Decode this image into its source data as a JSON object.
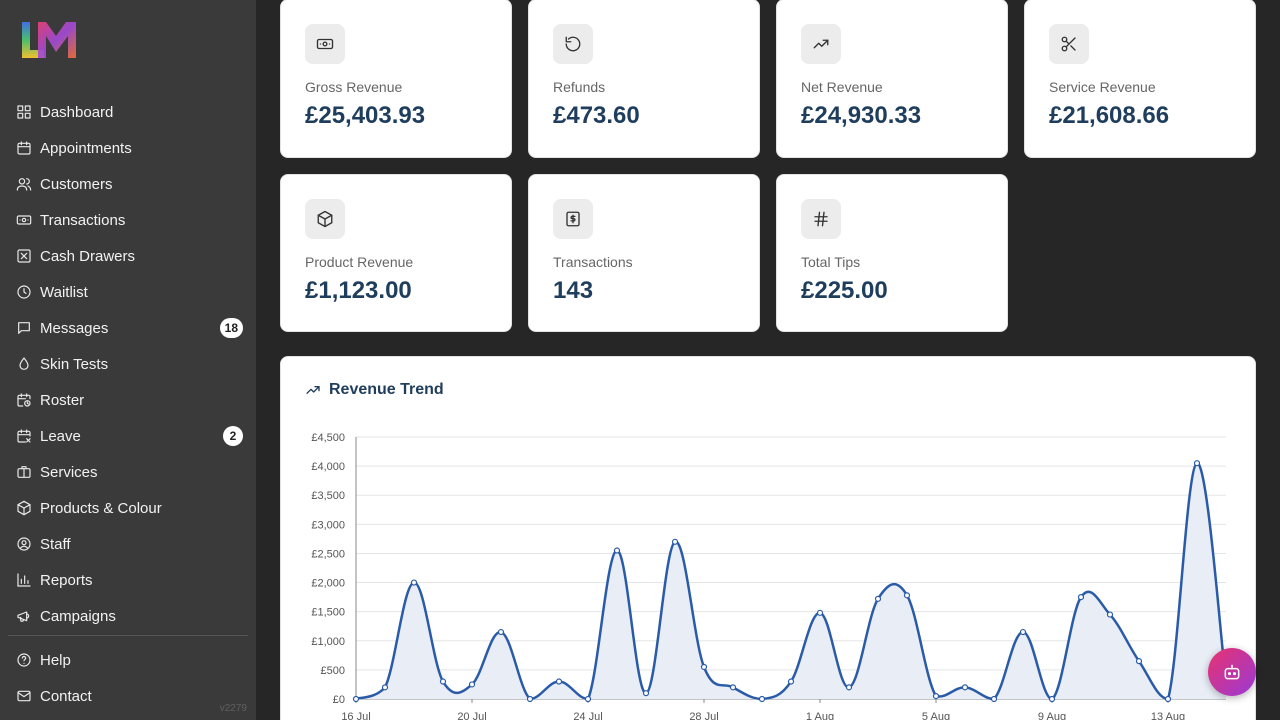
{
  "sidebar": {
    "logo_text": "LM",
    "items": [
      {
        "label": "Dashboard",
        "icon": "grid-icon"
      },
      {
        "label": "Appointments",
        "icon": "calendar-icon"
      },
      {
        "label": "Customers",
        "icon": "users-icon"
      },
      {
        "label": "Transactions",
        "icon": "banknote-icon"
      },
      {
        "label": "Cash Drawers",
        "icon": "drawer-x-icon"
      },
      {
        "label": "Waitlist",
        "icon": "clock-icon"
      },
      {
        "label": "Messages",
        "icon": "message-icon",
        "badge": "18"
      },
      {
        "label": "Skin Tests",
        "icon": "droplet-icon"
      },
      {
        "label": "Roster",
        "icon": "calendar-clock-icon"
      },
      {
        "label": "Leave",
        "icon": "calendar-off-icon",
        "badge": "2"
      },
      {
        "label": "Services",
        "icon": "briefcase-icon"
      },
      {
        "label": "Products & Colour",
        "icon": "box-icon"
      },
      {
        "label": "Staff",
        "icon": "user-circle-icon"
      },
      {
        "label": "Reports",
        "icon": "bar-chart-icon"
      },
      {
        "label": "Campaigns",
        "icon": "megaphone-icon"
      }
    ],
    "bottom_items": [
      {
        "label": "Help",
        "icon": "help-circle-icon"
      },
      {
        "label": "Contact",
        "icon": "mail-icon"
      }
    ],
    "version": "v2279"
  },
  "stats": [
    {
      "label": "Gross Revenue",
      "value": "£25,403.93",
      "icon": "banknote-icon"
    },
    {
      "label": "Refunds",
      "value": "£473.60",
      "icon": "rotate-ccw-icon"
    },
    {
      "label": "Net Revenue",
      "value": "£24,930.33",
      "icon": "trending-up-icon"
    },
    {
      "label": "Service Revenue",
      "value": "£21,608.66",
      "icon": "scissors-icon"
    },
    {
      "label": "Product Revenue",
      "value": "£1,123.00",
      "icon": "box-icon"
    },
    {
      "label": "Transactions",
      "value": "143",
      "icon": "receipt-dollar-icon"
    },
    {
      "label": "Total Tips",
      "value": "£225.00",
      "icon": "hash-icon"
    }
  ],
  "chart": {
    "title": "Revenue Trend",
    "icon": "trending-up-icon"
  },
  "chart_data": {
    "type": "area",
    "title": "Revenue Trend",
    "xlabel": "",
    "ylabel": "",
    "ylim": [
      0,
      4500
    ],
    "y_ticks": [
      "£0",
      "£500",
      "£1,000",
      "£1,500",
      "£2,000",
      "£2,500",
      "£3,000",
      "£3,500",
      "£4,000",
      "£4,500"
    ],
    "y_tick_values": [
      0,
      500,
      1000,
      1500,
      2000,
      2500,
      3000,
      3500,
      4000,
      4500
    ],
    "x_tick_labels": [
      "16 Jul",
      "20 Jul",
      "24 Jul",
      "28 Jul",
      "1 Aug",
      "5 Aug",
      "9 Aug",
      "13 Aug"
    ],
    "grid": true,
    "line_color": "#2a5ba8",
    "fill_color": "#e8edf6",
    "x": [
      "16 Jul",
      "17 Jul",
      "18 Jul",
      "19 Jul",
      "20 Jul",
      "21 Jul",
      "22 Jul",
      "23 Jul",
      "24 Jul",
      "25 Jul",
      "26 Jul",
      "27 Jul",
      "28 Jul",
      "29 Jul",
      "30 Jul",
      "31 Jul",
      "1 Aug",
      "2 Aug",
      "3 Aug",
      "4 Aug",
      "5 Aug",
      "6 Aug",
      "7 Aug",
      "8 Aug",
      "9 Aug",
      "10 Aug",
      "11 Aug",
      "12 Aug",
      "13 Aug",
      "14 Aug",
      "15 Aug"
    ],
    "values": [
      0,
      200,
      2000,
      300,
      250,
      1150,
      0,
      300,
      0,
      2550,
      100,
      2700,
      550,
      200,
      0,
      300,
      1480,
      200,
      1720,
      1780,
      50,
      200,
      0,
      1150,
      0,
      1750,
      1450,
      650,
      0,
      4050,
      300
    ]
  },
  "fab": {
    "icon": "bot-icon"
  }
}
